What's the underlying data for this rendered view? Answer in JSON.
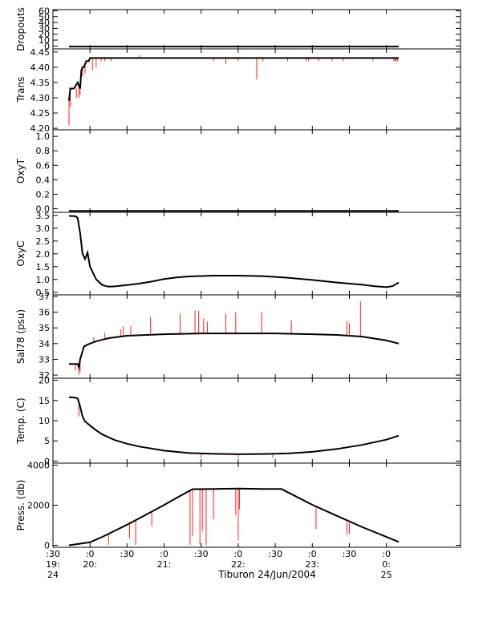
{
  "colors": {
    "trace": "#000000",
    "spikes": "#ff2020",
    "axes": "#000000",
    "background": "#ffffff"
  },
  "time_axis": {
    "range_minutes": [
      -30,
      300
    ],
    "title": "Tiburon 24/Jun/2004",
    "ticks": [
      {
        "t": -30,
        "lines": [
          ":30",
          "19:",
          "24"
        ]
      },
      {
        "t": 0,
        "lines": [
          ":0",
          "20:"
        ]
      },
      {
        "t": 30,
        "lines": [
          ":30"
        ]
      },
      {
        "t": 60,
        "lines": [
          ":0",
          "21:"
        ]
      },
      {
        "t": 90,
        "lines": [
          ":30"
        ]
      },
      {
        "t": 120,
        "lines": [
          ":0",
          "22:"
        ]
      },
      {
        "t": 150,
        "lines": [
          ":30"
        ]
      },
      {
        "t": 180,
        "lines": [
          ":0",
          "23:"
        ]
      },
      {
        "t": 210,
        "lines": [
          ":30"
        ]
      },
      {
        "t": 240,
        "lines": [
          ":0",
          "0:",
          "25"
        ]
      }
    ]
  },
  "chart_data": [
    {
      "type": "line",
      "id": "dropouts",
      "ylabel": "Dropouts",
      "ylim": [
        -5,
        62
      ],
      "yticks": [
        {
          "v": 0,
          "label": "0"
        },
        {
          "v": 10,
          "label": "10"
        },
        {
          "v": 20,
          "label": "20"
        },
        {
          "v": 30,
          "label": "30"
        },
        {
          "v": 40,
          "label": "40"
        },
        {
          "v": 50,
          "label": "50"
        },
        {
          "v": 60,
          "label": "60"
        }
      ],
      "series": [
        {
          "x": [
            -17,
            250
          ],
          "y": [
            -1,
            -1
          ]
        }
      ],
      "spikes": []
    },
    {
      "type": "line",
      "id": "trans",
      "ylabel": "Trans",
      "ylim": [
        4.195,
        4.46
      ],
      "yticks": [
        {
          "v": 4.2,
          "label": "4.20"
        },
        {
          "v": 4.25,
          "label": "4.25"
        },
        {
          "v": 4.3,
          "label": "4.30"
        },
        {
          "v": 4.35,
          "label": "4.35"
        },
        {
          "v": 4.4,
          "label": "4.40"
        },
        {
          "v": 4.45,
          "label": "4.45"
        }
      ],
      "series": [
        {
          "x": [
            -17,
            -16,
            -15,
            -13,
            -10,
            -9,
            -8,
            -7,
            -6,
            -5,
            -4,
            -3,
            -2,
            -1,
            0,
            1,
            3,
            5,
            250
          ],
          "y": [
            4.29,
            4.33,
            4.33,
            4.33,
            4.35,
            4.34,
            4.33,
            4.39,
            4.4,
            4.4,
            4.41,
            4.42,
            4.42,
            4.42,
            4.43,
            4.43,
            4.43,
            4.43,
            4.43
          ]
        }
      ],
      "spikes": [
        {
          "x": -17,
          "y0": 4.29,
          "y1": 4.21
        },
        {
          "x": -16,
          "y0": 4.33,
          "y1": 4.27
        },
        {
          "x": -11,
          "y0": 4.33,
          "y1": 4.3
        },
        {
          "x": -9,
          "y0": 4.34,
          "y1": 4.3
        },
        {
          "x": -8,
          "y0": 4.33,
          "y1": 4.31
        },
        {
          "x": -6,
          "y0": 4.4,
          "y1": 4.37
        },
        {
          "x": -4,
          "y0": 4.41,
          "y1": 4.38
        },
        {
          "x": 2,
          "y0": 4.43,
          "y1": 4.39
        },
        {
          "x": 5,
          "y0": 4.43,
          "y1": 4.4
        },
        {
          "x": 9,
          "y0": 4.43,
          "y1": 4.42
        },
        {
          "x": 12,
          "y0": 4.43,
          "y1": 4.42
        },
        {
          "x": 17,
          "y0": 4.43,
          "y1": 4.42
        },
        {
          "x": 40,
          "y0": 4.43,
          "y1": 4.44
        },
        {
          "x": 100,
          "y0": 4.43,
          "y1": 4.42
        },
        {
          "x": 110,
          "y0": 4.43,
          "y1": 4.41
        },
        {
          "x": 120,
          "y0": 4.43,
          "y1": 4.42
        },
        {
          "x": 135,
          "y0": 4.43,
          "y1": 4.36
        },
        {
          "x": 140,
          "y0": 4.43,
          "y1": 4.42
        },
        {
          "x": 160,
          "y0": 4.43,
          "y1": 4.42
        },
        {
          "x": 175,
          "y0": 4.43,
          "y1": 4.42
        },
        {
          "x": 177,
          "y0": 4.43,
          "y1": 4.42
        },
        {
          "x": 185,
          "y0": 4.43,
          "y1": 4.42
        },
        {
          "x": 196,
          "y0": 4.43,
          "y1": 4.42
        },
        {
          "x": 205,
          "y0": 4.43,
          "y1": 4.42
        },
        {
          "x": 229,
          "y0": 4.43,
          "y1": 4.42
        },
        {
          "x": 246,
          "y0": 4.43,
          "y1": 4.42
        },
        {
          "x": 247,
          "y0": 4.43,
          "y1": 4.42
        },
        {
          "x": 248,
          "y0": 4.43,
          "y1": 4.42
        },
        {
          "x": 249,
          "y0": 4.43,
          "y1": 4.42
        }
      ]
    },
    {
      "type": "line",
      "id": "oxyt",
      "ylabel": "OxyT",
      "ylim": [
        -0.05,
        1.09
      ],
      "yticks": [
        {
          "v": 0.0,
          "label": "0.0"
        },
        {
          "v": 0.2,
          "label": "0.2"
        },
        {
          "v": 0.4,
          "label": "0.4"
        },
        {
          "v": 0.6,
          "label": "0.6"
        },
        {
          "v": 0.8,
          "label": "0.8"
        },
        {
          "v": 1.0,
          "label": "1.0"
        }
      ],
      "series": [
        {
          "x": [
            -17,
            250
          ],
          "y": [
            -0.03,
            -0.03
          ]
        }
      ],
      "spikes": []
    },
    {
      "type": "line",
      "id": "oxyc",
      "ylabel": "OxyC",
      "ylim": [
        0.4,
        3.62
      ],
      "yticks": [
        {
          "v": 0.5,
          "label": "0.5"
        },
        {
          "v": 1.0,
          "label": "1.0"
        },
        {
          "v": 1.5,
          "label": "1.5"
        },
        {
          "v": 2.0,
          "label": "2.0"
        },
        {
          "v": 2.5,
          "label": "2.5"
        },
        {
          "v": 3.0,
          "label": "3.0"
        },
        {
          "v": 3.5,
          "label": "3.5"
        }
      ],
      "series": [
        {
          "x": [
            -17,
            -12,
            -10,
            -8,
            -6,
            -4,
            -2,
            0,
            2,
            5,
            10,
            15,
            20,
            30,
            40,
            50,
            60,
            70,
            80,
            100,
            120,
            140,
            160,
            180,
            200,
            220,
            230,
            240,
            245,
            250
          ],
          "y": [
            3.48,
            3.47,
            3.4,
            2.8,
            2.0,
            1.8,
            2.05,
            1.5,
            1.3,
            1.0,
            0.78,
            0.72,
            0.73,
            0.78,
            0.84,
            0.92,
            1.02,
            1.08,
            1.12,
            1.15,
            1.15,
            1.13,
            1.07,
            0.98,
            0.88,
            0.8,
            0.74,
            0.7,
            0.74,
            0.88
          ]
        }
      ],
      "spikes": []
    },
    {
      "type": "line",
      "id": "sal78",
      "ylabel": "Sal78 (psu)",
      "ylim": [
        31.8,
        37.1
      ],
      "yticks": [
        {
          "v": 32,
          "label": "32"
        },
        {
          "v": 33,
          "label": "33"
        },
        {
          "v": 34,
          "label": "34"
        },
        {
          "v": 35,
          "label": "35"
        },
        {
          "v": 36,
          "label": "36"
        },
        {
          "v": 37,
          "label": "37"
        }
      ],
      "series": [
        {
          "x": [
            -17,
            -12,
            -10,
            -9,
            -8,
            -6,
            -5,
            -3,
            0,
            5,
            15,
            30,
            60,
            90,
            120,
            150,
            180,
            200,
            220,
            240,
            250
          ],
          "y": [
            32.7,
            32.7,
            32.7,
            32.5,
            33.0,
            33.5,
            33.8,
            33.9,
            34.0,
            34.15,
            34.35,
            34.5,
            34.6,
            34.65,
            34.65,
            34.65,
            34.6,
            34.55,
            34.45,
            34.2,
            34.0
          ]
        }
      ],
      "spikes": [
        {
          "x": -12,
          "y0": 32.7,
          "y1": 32.3
        },
        {
          "x": -9,
          "y0": 32.5,
          "y1": 32.0
        },
        {
          "x": -8,
          "y0": 33.0,
          "y1": 32.2
        },
        {
          "x": 3,
          "y0": 34.1,
          "y1": 34.4
        },
        {
          "x": 12,
          "y0": 34.3,
          "y1": 34.7
        },
        {
          "x": 25,
          "y0": 34.45,
          "y1": 34.9
        },
        {
          "x": 27,
          "y0": 34.45,
          "y1": 35.1
        },
        {
          "x": 33,
          "y0": 34.5,
          "y1": 35.1
        },
        {
          "x": 49,
          "y0": 34.55,
          "y1": 35.7
        },
        {
          "x": 73,
          "y0": 34.6,
          "y1": 35.9
        },
        {
          "x": 85,
          "y0": 34.6,
          "y1": 36.1
        },
        {
          "x": 88,
          "y0": 34.6,
          "y1": 36.1
        },
        {
          "x": 92,
          "y0": 34.6,
          "y1": 35.6
        },
        {
          "x": 95,
          "y0": 34.6,
          "y1": 35.4
        },
        {
          "x": 110,
          "y0": 34.65,
          "y1": 35.9
        },
        {
          "x": 118,
          "y0": 34.65,
          "y1": 36.0
        },
        {
          "x": 139,
          "y0": 34.65,
          "y1": 36.0
        },
        {
          "x": 163,
          "y0": 34.6,
          "y1": 35.5
        },
        {
          "x": 208,
          "y0": 34.5,
          "y1": 35.4
        },
        {
          "x": 210,
          "y0": 34.5,
          "y1": 35.3
        },
        {
          "x": 219,
          "y0": 34.45,
          "y1": 36.7
        }
      ]
    },
    {
      "type": "line",
      "id": "temp",
      "ylabel": "Temp. (C)",
      "ylim": [
        -0.5,
        20.5
      ],
      "yticks": [
        {
          "v": 0,
          "label": "0"
        },
        {
          "v": 5,
          "label": "5"
        },
        {
          "v": 10,
          "label": "10"
        },
        {
          "v": 15,
          "label": "15"
        },
        {
          "v": 20,
          "label": "20"
        }
      ],
      "series": [
        {
          "x": [
            -17,
            -12,
            -10,
            -8,
            -6,
            -4,
            -2,
            0,
            5,
            10,
            20,
            30,
            40,
            60,
            80,
            100,
            120,
            140,
            160,
            180,
            200,
            220,
            240,
            250
          ],
          "y": [
            15.8,
            15.7,
            15.5,
            13.5,
            11.0,
            9.8,
            9.3,
            8.8,
            7.6,
            6.6,
            5.2,
            4.3,
            3.6,
            2.6,
            2.0,
            1.8,
            1.7,
            1.75,
            1.9,
            2.3,
            3.0,
            4.0,
            5.3,
            6.3
          ]
        }
      ],
      "spikes": [
        {
          "x": -9,
          "y0": 14.5,
          "y1": 11.0
        },
        {
          "x": 90,
          "y0": 1.8,
          "y1": 0.8
        },
        {
          "x": 120,
          "y0": 1.7,
          "y1": 0.8
        },
        {
          "x": 148,
          "y0": 1.8,
          "y1": 0.8
        }
      ]
    },
    {
      "type": "line",
      "id": "pressure",
      "ylabel": "Press. (db)",
      "ylim": [
        -100,
        4100
      ],
      "yticks": [
        {
          "v": 0,
          "label": "0"
        },
        {
          "v": 2000,
          "label": "2000"
        },
        {
          "v": 4000,
          "label": "4000"
        }
      ],
      "series": [
        {
          "x": [
            -17,
            0,
            10,
            20,
            30,
            40,
            50,
            60,
            70,
            83,
            100,
            120,
            140,
            155,
            180,
            200,
            220,
            250
          ],
          "y": [
            0,
            150,
            420,
            720,
            1030,
            1350,
            1680,
            2010,
            2360,
            2800,
            2810,
            2830,
            2810,
            2810,
            2020,
            1470,
            920,
            170
          ]
        }
      ],
      "spikes": [
        {
          "x": 15,
          "y0": 580,
          "y1": 10
        },
        {
          "x": 32,
          "y0": 1100,
          "y1": 350
        },
        {
          "x": 37,
          "y0": 1250,
          "y1": 20
        },
        {
          "x": 50,
          "y0": 1680,
          "y1": 950
        },
        {
          "x": 81,
          "y0": 2730,
          "y1": 20
        },
        {
          "x": 83,
          "y0": 2800,
          "y1": 450
        },
        {
          "x": 89,
          "y0": 2810,
          "y1": 40
        },
        {
          "x": 91,
          "y0": 2810,
          "y1": 700
        },
        {
          "x": 94,
          "y0": 2810,
          "y1": 20
        },
        {
          "x": 100,
          "y0": 2810,
          "y1": 1300
        },
        {
          "x": 118,
          "y0": 2830,
          "y1": 1500
        },
        {
          "x": 120,
          "y0": 2830,
          "y1": 250
        },
        {
          "x": 121,
          "y0": 2830,
          "y1": 1800
        },
        {
          "x": 183,
          "y0": 1920,
          "y1": 800
        },
        {
          "x": 208,
          "y0": 1180,
          "y1": 520
        },
        {
          "x": 210,
          "y0": 1120,
          "y1": 560
        }
      ]
    }
  ]
}
